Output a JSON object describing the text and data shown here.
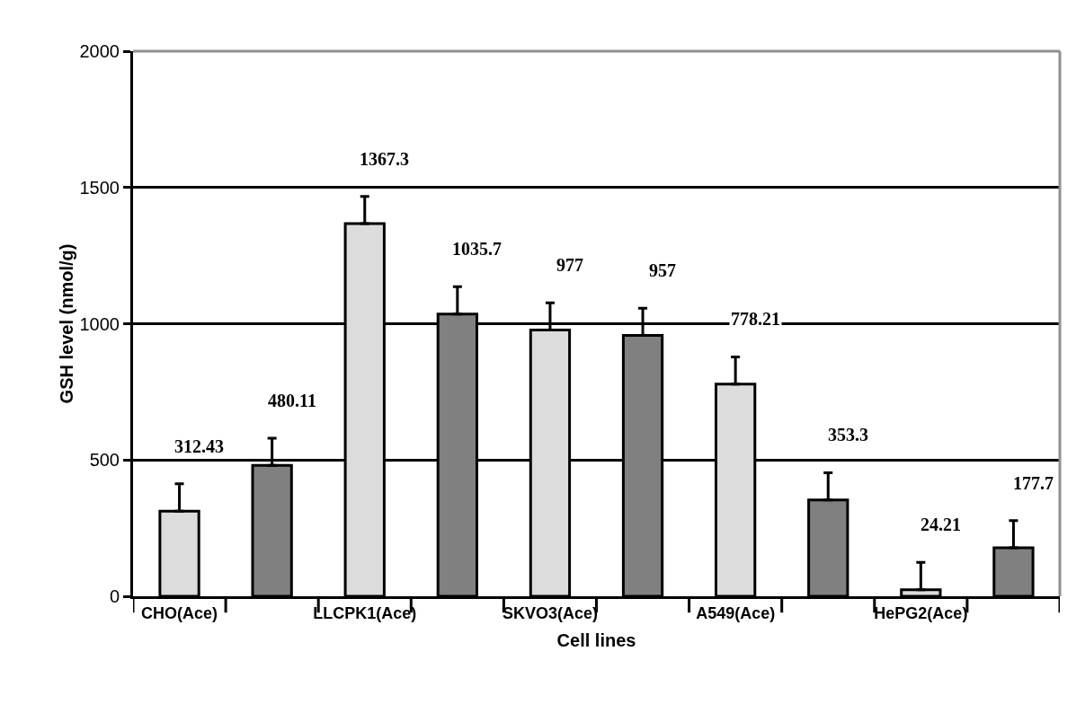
{
  "chart_data": {
    "type": "bar",
    "xlabel": "Cell lines",
    "ylabel": "GSH level (nmol/g)",
    "categories": [
      "CHO(Ace)",
      null,
      "LLCPK1(Ace)",
      null,
      "SKVO3(Ace)",
      null,
      "A549(Ace)",
      null,
      "HePG2(Ace)",
      null
    ],
    "values": [
      312.43,
      480.11,
      1367.3,
      1035.7,
      977,
      957,
      778.21,
      353.3,
      24.21,
      177.7
    ],
    "errors": [
      [
        312.43,
        412.43
      ],
      [
        480.11,
        580.11
      ],
      [
        1367.3,
        1467.3
      ],
      [
        1035.7,
        1135.7
      ],
      [
        977,
        1077
      ],
      [
        957,
        1057
      ],
      [
        778.21,
        878.21
      ],
      [
        353.3,
        453.3
      ],
      [
        24.21,
        124.21
      ],
      [
        177.7,
        277.7
      ]
    ],
    "colors": [
      "#dcdcdc",
      "#808080",
      "#dcdcdc",
      "#808080",
      "#dcdcdc",
      "#808080",
      "#dcdcdc",
      "#808080",
      "#dcdcdc",
      "#808080"
    ],
    "data_labels": true,
    "ylim": [
      0,
      2000
    ],
    "yticks": [
      0,
      500,
      1000,
      1500,
      2000
    ],
    "grid": "y"
  }
}
